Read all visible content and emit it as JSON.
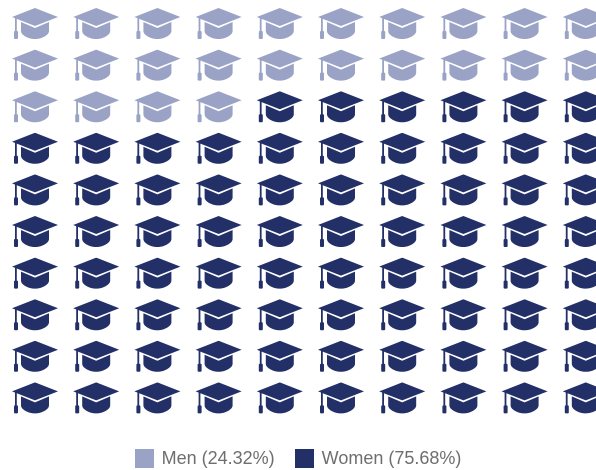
{
  "colors": {
    "men": "#9aa3c6",
    "women": "#233068"
  },
  "legend": {
    "men_label": "Men (24.32%)",
    "women_label": "Women (75.68%)"
  },
  "chart_data": {
    "type": "pictograph",
    "icon": "graduation-cap-icon",
    "legend_position": "bottom-center",
    "series": [
      {
        "name": "Men (24.32%)",
        "value": 24.32,
        "color": "#9aa3c6"
      },
      {
        "name": "Women (75.68%)",
        "value": 75.68,
        "color": "#233068"
      }
    ]
  }
}
